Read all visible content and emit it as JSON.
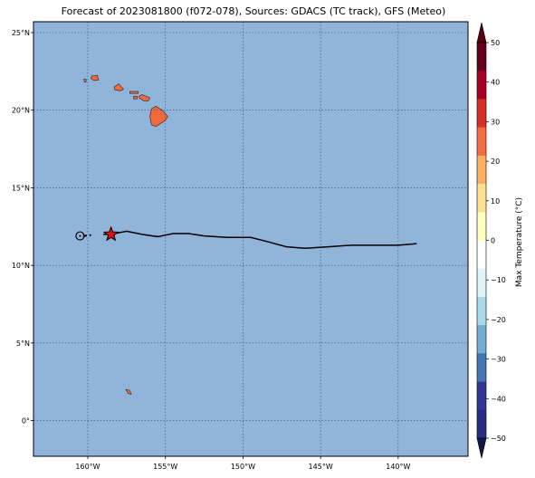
{
  "title": "Forecast of 2023081800 (f072-078), Sources: GDACS (TC track), GFS (Meteo)",
  "map": {
    "lon_range": [
      -163.5,
      -135.5
    ],
    "lat_range": [
      -2.3,
      25.7
    ],
    "lon_ticks": [
      {
        "value": -160,
        "label": "160°W"
      },
      {
        "value": -155,
        "label": "155°W"
      },
      {
        "value": -150,
        "label": "150°W"
      },
      {
        "value": -145,
        "label": "145°W"
      },
      {
        "value": -140,
        "label": "140°W"
      }
    ],
    "lat_ticks": [
      {
        "value": 0,
        "label": "0°"
      },
      {
        "value": 5,
        "label": "5°N"
      },
      {
        "value": 10,
        "label": "10°N"
      },
      {
        "value": 15,
        "label": "15°N"
      },
      {
        "value": 20,
        "label": "20°N"
      },
      {
        "value": 25,
        "label": "25°N"
      }
    ],
    "ocean_color": "#91b5da",
    "land_color": "#f06a3a",
    "grid": true
  },
  "chart_data": {
    "type": "map",
    "track": {
      "past_points": [
        [
          -160.3,
          11.9
        ],
        [
          -159.8,
          11.95
        ]
      ],
      "future_points": [
        [
          -159.0,
          12.0
        ],
        [
          -158.5,
          12.0
        ],
        [
          -157.5,
          12.2
        ],
        [
          -156.5,
          12.0
        ],
        [
          -155.5,
          11.85
        ],
        [
          -154.5,
          12.05
        ],
        [
          -153.5,
          12.05
        ],
        [
          -152.5,
          11.9
        ],
        [
          -151.0,
          11.8
        ],
        [
          -149.5,
          11.8
        ],
        [
          -148.5,
          11.55
        ],
        [
          -147.2,
          11.2
        ],
        [
          -146.0,
          11.1
        ],
        [
          -144.5,
          11.2
        ],
        [
          -143.0,
          11.3
        ],
        [
          -141.5,
          11.3
        ],
        [
          -140.0,
          11.3
        ],
        [
          -138.8,
          11.4
        ]
      ],
      "origin_marker": [
        -160.5,
        11.9
      ],
      "current_position": [
        -158.5,
        12.0
      ],
      "line_color": "#000000",
      "star_color": "#dd1111"
    },
    "islands": [
      {
        "name": "Hawaii",
        "points": [
          [
            -155.9,
            20.1
          ],
          [
            -155.6,
            20.25
          ],
          [
            -155.2,
            20.0
          ],
          [
            -154.85,
            19.6
          ],
          [
            -155.0,
            19.35
          ],
          [
            -155.6,
            18.95
          ],
          [
            -155.9,
            19.05
          ],
          [
            -156.0,
            19.6
          ]
        ]
      },
      {
        "name": "Maui",
        "points": [
          [
            -156.7,
            20.9
          ],
          [
            -156.5,
            21.0
          ],
          [
            -156.0,
            20.8
          ],
          [
            -156.1,
            20.6
          ],
          [
            -156.4,
            20.6
          ],
          [
            -156.7,
            20.8
          ]
        ]
      },
      {
        "name": "Molokai",
        "points": [
          [
            -157.3,
            21.2
          ],
          [
            -156.75,
            21.2
          ],
          [
            -156.75,
            21.08
          ],
          [
            -157.3,
            21.08
          ]
        ]
      },
      {
        "name": "Lanai",
        "points": [
          [
            -157.05,
            20.9
          ],
          [
            -156.82,
            20.9
          ],
          [
            -156.82,
            20.73
          ],
          [
            -157.05,
            20.73
          ]
        ]
      },
      {
        "name": "Oahu",
        "points": [
          [
            -158.3,
            21.5
          ],
          [
            -158.0,
            21.7
          ],
          [
            -157.7,
            21.35
          ],
          [
            -157.9,
            21.25
          ],
          [
            -158.25,
            21.3
          ]
        ]
      },
      {
        "name": "Kauai",
        "points": [
          [
            -159.75,
            22.2
          ],
          [
            -159.4,
            22.25
          ],
          [
            -159.3,
            21.95
          ],
          [
            -159.6,
            21.9
          ],
          [
            -159.8,
            22.05
          ]
        ]
      },
      {
        "name": "Niihau",
        "points": [
          [
            -160.25,
            22.0
          ],
          [
            -160.1,
            21.98
          ],
          [
            -160.12,
            21.8
          ],
          [
            -160.22,
            21.82
          ]
        ]
      },
      {
        "name": "Kiritimati",
        "points": [
          [
            -157.55,
            2.0
          ],
          [
            -157.3,
            1.95
          ],
          [
            -157.2,
            1.7
          ],
          [
            -157.4,
            1.75
          ]
        ]
      }
    ]
  },
  "colorbar": {
    "label": "Max Temperature (°C)",
    "ticks": [
      50,
      40,
      30,
      20,
      10,
      0,
      -10,
      -20,
      -30,
      -40,
      -50
    ],
    "tick_labels": [
      "50",
      "40",
      "30",
      "20",
      "10",
      "0",
      "−10",
      "−20",
      "−30",
      "−40",
      "−50"
    ],
    "colors_top_to_bottom": [
      "#67001f",
      "#a50026",
      "#d73027",
      "#f46d43",
      "#fdae61",
      "#fee090",
      "#ffffbf",
      "#ffffff",
      "#e0f3f8",
      "#abd9e9",
      "#74add1",
      "#4575b4",
      "#313695",
      "#282b80"
    ],
    "over_color": "#5a0010",
    "under_color": "#151748"
  }
}
